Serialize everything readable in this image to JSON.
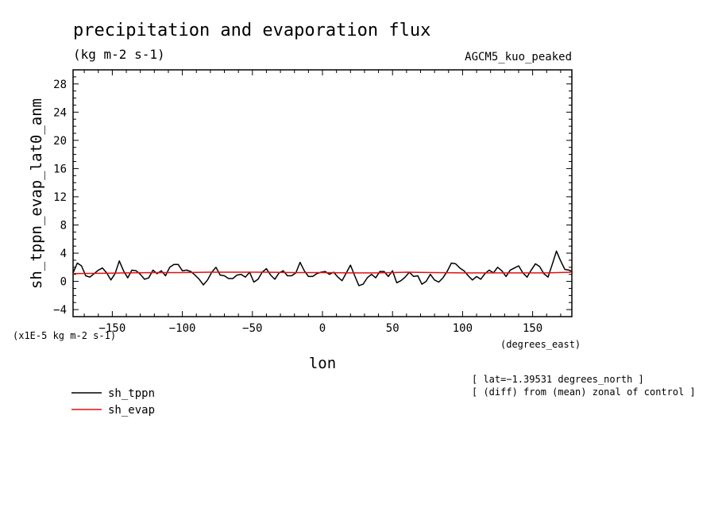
{
  "chart_data": {
    "type": "line",
    "title": "precipitation and evaporation flux",
    "units": "(kg m-2 s-1)",
    "model": "AGCM5_kuo_peaked",
    "ylabel": "sh_tppn_evap_lat0_anm",
    "xlabel": "lon",
    "x_units": "(degrees_east)",
    "y_scale_note": "(x1E-5 kg m-2 s-1)",
    "xlim": [
      -178,
      178
    ],
    "ylim": [
      -5,
      30
    ],
    "x_ticks": [
      -150,
      -100,
      -50,
      0,
      50,
      100,
      150
    ],
    "x_tick_labels": [
      "−150",
      "−100",
      "−50",
      "0",
      "50",
      "100",
      "150"
    ],
    "y_ticks": [
      -4,
      0,
      4,
      8,
      12,
      16,
      20,
      24,
      28
    ],
    "y_tick_labels": [
      "−4",
      "0",
      "4",
      "8",
      "12",
      "16",
      "20",
      "24",
      "28"
    ],
    "annotations": [
      "[ lat=−1.39531 degrees_north ]",
      "[ (diff) from (mean) zonal of control ]"
    ],
    "series": [
      {
        "name": "sh_tppn",
        "color": "#000000",
        "x": [
          -178,
          -175,
          -172,
          -169,
          -166,
          -163,
          -160,
          -157,
          -154,
          -151,
          -148,
          -145,
          -142,
          -139,
          -136,
          -133,
          -130,
          -127,
          -124,
          -121,
          -118,
          -115,
          -112,
          -109,
          -106,
          -103,
          -100,
          -97,
          -94,
          -91,
          -88,
          -85,
          -82,
          -79,
          -76,
          -73,
          -70,
          -67,
          -64,
          -61,
          -58,
          -55,
          -52,
          -49,
          -46,
          -43,
          -40,
          -37,
          -34,
          -31,
          -28,
          -25,
          -22,
          -19,
          -16,
          -13,
          -10,
          -7,
          -4,
          -1,
          2,
          5,
          8,
          11,
          14,
          17,
          20,
          23,
          26,
          29,
          32,
          35,
          38,
          41,
          44,
          47,
          50,
          53,
          56,
          59,
          62,
          65,
          68,
          71,
          74,
          77,
          80,
          83,
          86,
          89,
          92,
          95,
          98,
          101,
          104,
          107,
          110,
          113,
          116,
          119,
          122,
          125,
          128,
          131,
          134,
          137,
          140,
          143,
          146,
          149,
          152,
          155,
          158,
          161,
          164,
          167,
          170,
          173,
          176,
          178
        ],
        "values": [
          1.2,
          2.6,
          2.2,
          0.8,
          0.6,
          1.1,
          1.6,
          1.9,
          1.2,
          0.2,
          1.1,
          2.9,
          1.5,
          0.5,
          1.6,
          1.5,
          1.0,
          0.3,
          0.5,
          1.6,
          1.1,
          1.5,
          0.8,
          2.0,
          2.4,
          2.4,
          1.5,
          1.6,
          1.4,
          0.9,
          0.3,
          -0.5,
          0.2,
          1.3,
          2.0,
          0.9,
          0.8,
          0.4,
          0.4,
          0.9,
          1.0,
          0.6,
          1.3,
          -0.1,
          0.3,
          1.3,
          1.8,
          0.9,
          0.3,
          1.2,
          1.5,
          0.8,
          0.8,
          1.2,
          2.7,
          1.5,
          0.7,
          0.7,
          1.1,
          1.3,
          1.4,
          1.0,
          1.3,
          0.6,
          0.1,
          1.2,
          2.3,
          0.8,
          -0.6,
          -0.4,
          0.5,
          1.0,
          0.5,
          1.4,
          1.4,
          0.7,
          1.5,
          -0.2,
          0.1,
          0.6,
          1.3,
          0.7,
          0.8,
          -0.4,
          0.0,
          1.0,
          0.2,
          -0.1,
          0.5,
          1.4,
          2.6,
          2.5,
          1.9,
          1.5,
          0.8,
          0.2,
          0.7,
          0.3,
          1.1,
          1.6,
          1.2,
          2.0,
          1.5,
          0.7,
          1.6,
          1.9,
          2.2,
          1.2,
          0.6,
          1.6,
          2.5,
          2.1,
          1.1,
          0.6,
          2.4,
          4.3,
          2.9,
          1.7,
          1.6,
          1.4
        ]
      },
      {
        "name": "sh_evap",
        "color": "#e01010",
        "x": [
          -178,
          -160,
          -140,
          -120,
          -100,
          -80,
          -60,
          -40,
          -20,
          0,
          20,
          40,
          60,
          80,
          100,
          120,
          140,
          160,
          178
        ],
        "values": [
          1.1,
          1.15,
          1.2,
          1.25,
          1.25,
          1.3,
          1.3,
          1.3,
          1.25,
          1.25,
          1.2,
          1.2,
          1.3,
          1.25,
          1.2,
          1.2,
          1.2,
          1.2,
          1.3
        ]
      }
    ]
  }
}
